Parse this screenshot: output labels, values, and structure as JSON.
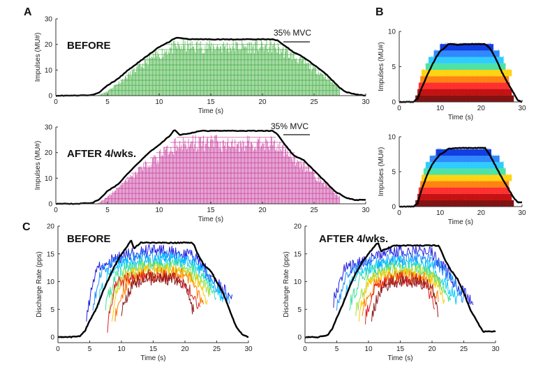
{
  "panel_labels": {
    "a": "A",
    "b": "B",
    "c": "C"
  },
  "chart_data": [
    {
      "id": "A-before",
      "panel": "A",
      "type": "area",
      "title": "BEFORE",
      "annotation": "35% MVC",
      "xlabel": "Time (s)",
      "ylabel": "Impulses (MU#)",
      "xlim": [
        0,
        30
      ],
      "ylim": [
        0,
        30
      ],
      "xticks": [
        0,
        5,
        10,
        15,
        20,
        25,
        30
      ],
      "yticks": [
        0,
        10,
        20,
        30
      ],
      "mu_color": "#3fae3f",
      "mu_envelope": {
        "x": [
          4,
          5,
          7,
          9,
          11,
          12,
          14,
          18,
          21,
          22,
          24,
          26,
          27.5
        ],
        "y": [
          0,
          2,
          9,
          16,
          21,
          22,
          22,
          22,
          22,
          20,
          15,
          9,
          3
        ]
      },
      "series": [
        {
          "name": "",
          "color": "#000000",
          "x": [
            0,
            2,
            3.5,
            4.3,
            5,
            6,
            7,
            8,
            9,
            10,
            11,
            11.5,
            12,
            13,
            14,
            15,
            16,
            17,
            18,
            19,
            20,
            21,
            21.5,
            22,
            23,
            24,
            25,
            26,
            27,
            27.5,
            28,
            29,
            30
          ],
          "y": [
            0,
            0,
            0.2,
            1.5,
            4,
            6.5,
            10,
            13,
            16,
            19,
            21,
            22.5,
            22.5,
            22,
            22,
            22,
            22,
            22,
            22,
            22,
            22,
            22,
            21.5,
            20,
            17,
            15,
            12,
            9,
            5,
            3,
            1.5,
            0.5,
            0
          ]
        }
      ]
    },
    {
      "id": "A-after",
      "panel": "A",
      "type": "area",
      "title": "AFTER 4/wks.",
      "annotation": "35% MVC",
      "xlabel": "Time (s)",
      "ylabel": "Impulses (MU#)",
      "xlim": [
        0,
        30
      ],
      "ylim": [
        0,
        30
      ],
      "xticks": [
        0,
        5,
        10,
        15,
        20,
        25,
        30
      ],
      "yticks": [
        0,
        10,
        20,
        30
      ],
      "mu_color": "#c83d9e",
      "mu_envelope": {
        "x": [
          4,
          5,
          7,
          9,
          11,
          12,
          14,
          19,
          21,
          22,
          24,
          26,
          27.5
        ],
        "y": [
          0,
          3,
          11,
          18,
          24,
          27,
          27,
          27,
          27,
          24,
          17,
          9,
          3
        ]
      },
      "series": [
        {
          "name": "",
          "color": "#000000",
          "x": [
            0,
            2,
            3.5,
            4.3,
            5,
            6,
            7,
            8,
            9,
            10,
            11,
            11.5,
            12,
            13,
            14,
            15,
            16,
            17,
            18,
            19,
            20,
            21,
            21.5,
            22,
            23,
            24,
            25,
            26,
            27,
            28,
            29,
            30
          ],
          "y": [
            0,
            0,
            0.3,
            2,
            5,
            7.5,
            12,
            16,
            20,
            23,
            26.5,
            29,
            27,
            27.5,
            28.5,
            28.5,
            28.5,
            28.5,
            28.5,
            28.5,
            28.5,
            28.5,
            27,
            24,
            19,
            17,
            13,
            9,
            5,
            2.5,
            1.5,
            1.5
          ]
        }
      ]
    },
    {
      "id": "B-before",
      "panel": "B",
      "type": "bar",
      "xlabel": "Time (s)",
      "ylabel": "Impulses (MU#)",
      "xlim": [
        0,
        30
      ],
      "ylim": [
        0,
        10
      ],
      "xticks": [
        0,
        10,
        20,
        30
      ],
      "yticks": [
        0,
        5,
        10
      ],
      "mu_bands": [
        {
          "color": "#7a0000",
          "start": 4.0,
          "end": 28.0
        },
        {
          "color": "#c00000",
          "start": 4.5,
          "end": 27.5
        },
        {
          "color": "#ff2020",
          "start": 4.8,
          "end": 27.0
        },
        {
          "color": "#ff7a00",
          "start": 5.2,
          "end": 26.8
        },
        {
          "color": "#ffd000",
          "start": 5.5,
          "end": 27.5
        },
        {
          "color": "#40e0a0",
          "start": 6.5,
          "end": 26.0
        },
        {
          "color": "#20c8ff",
          "start": 7.2,
          "end": 25.5
        },
        {
          "color": "#2080ff",
          "start": 8.5,
          "end": 24.5
        },
        {
          "color": "#0030e0",
          "start": 10.0,
          "end": 23.0
        }
      ],
      "series": [
        {
          "name": "",
          "color": "#000000",
          "x": [
            0,
            3.5,
            4.5,
            5.5,
            7,
            8,
            9,
            10,
            11,
            12,
            13,
            14,
            16,
            18,
            20,
            21,
            22,
            23,
            24,
            25,
            26,
            27,
            28,
            29,
            30
          ],
          "y": [
            0,
            0,
            0.5,
            2,
            4,
            5.2,
            6.3,
            7.2,
            7.6,
            8.2,
            8.2,
            8.1,
            8.2,
            8.2,
            8.2,
            8.2,
            7.7,
            6.8,
            5.6,
            4.3,
            3.2,
            2.2,
            1.2,
            0.2,
            0
          ]
        }
      ]
    },
    {
      "id": "B-after",
      "panel": "B",
      "type": "bar",
      "xlabel": "Time (s)",
      "ylabel": "Impulses (MU#)",
      "xlim": [
        0,
        30
      ],
      "ylim": [
        0,
        10
      ],
      "xticks": [
        0,
        10,
        20,
        30
      ],
      "yticks": [
        0,
        5,
        10
      ],
      "mu_bands": [
        {
          "color": "#7a0000",
          "start": 4.0,
          "end": 28.0
        },
        {
          "color": "#c00000",
          "start": 4.5,
          "end": 27.5
        },
        {
          "color": "#ff2020",
          "start": 4.8,
          "end": 27.0
        },
        {
          "color": "#ff7a00",
          "start": 5.2,
          "end": 26.8
        },
        {
          "color": "#ffd000",
          "start": 5.5,
          "end": 27.5
        },
        {
          "color": "#40e0a0",
          "start": 6.0,
          "end": 26.0
        },
        {
          "color": "#20c8ff",
          "start": 6.5,
          "end": 25.5
        },
        {
          "color": "#2080ff",
          "start": 7.5,
          "end": 24.5
        },
        {
          "color": "#0030e0",
          "start": 9.0,
          "end": 22.5
        }
      ],
      "series": [
        {
          "name": "",
          "color": "#000000",
          "x": [
            0,
            3.5,
            4.5,
            5.5,
            7,
            8,
            9,
            10,
            11,
            12,
            13,
            14,
            16,
            18,
            20,
            21,
            22,
            23,
            24,
            25,
            26,
            27,
            28,
            29,
            30
          ],
          "y": [
            0,
            0,
            0.5,
            2.5,
            4.8,
            6,
            6.8,
            7.5,
            7.8,
            8.3,
            8.3,
            8.4,
            8.4,
            8.4,
            8.4,
            8.4,
            7.5,
            6.4,
            5.3,
            4.2,
            3.2,
            2.2,
            1.2,
            0.6,
            0.6
          ]
        }
      ]
    },
    {
      "id": "C-before",
      "panel": "C",
      "type": "line",
      "title": "BEFORE",
      "xlabel": "Time (s)",
      "ylabel": "Discharge Rate (pps)",
      "xlim": [
        0,
        30
      ],
      "ylim": [
        -1,
        20
      ],
      "xticks": [
        0,
        5,
        10,
        15,
        20,
        25,
        30
      ],
      "yticks": [
        0,
        5,
        10,
        15,
        20
      ],
      "series": [
        {
          "name": "",
          "color": "#000000",
          "x": [
            0,
            2,
            3.5,
            4.3,
            5,
            6,
            7,
            8,
            9,
            10,
            11,
            11.5,
            12,
            13,
            14,
            15,
            16,
            17,
            18,
            19,
            20,
            21,
            21.5,
            22,
            23,
            24,
            25,
            26,
            27,
            27.5,
            28,
            29,
            30
          ],
          "y": [
            0,
            0,
            0.2,
            1.2,
            3,
            5,
            8,
            10.5,
            13,
            15,
            16.5,
            17.5,
            16,
            17,
            17,
            17,
            17,
            17,
            17,
            17,
            17,
            17,
            16.5,
            15,
            13,
            12,
            10,
            8,
            5,
            3.5,
            2,
            0.5,
            0
          ]
        },
        {
          "name": "",
          "color": "#2020e0",
          "x": [
            4.5,
            6,
            8,
            10,
            12,
            14,
            16,
            18,
            20,
            22,
            24,
            26,
            27.5
          ],
          "y": [
            4,
            12,
            13.5,
            14.5,
            15,
            15.5,
            15.5,
            15.5,
            15,
            14,
            11,
            8.5,
            7
          ]
        },
        {
          "name": "",
          "color": "#1e90ff",
          "x": [
            5.5,
            7,
            9,
            11,
            13,
            15,
            17,
            19,
            21,
            23,
            25,
            27
          ],
          "y": [
            6,
            12.5,
            13.5,
            14,
            14.5,
            14.5,
            14.5,
            14.5,
            14,
            12,
            9,
            6.5
          ]
        },
        {
          "name": "",
          "color": "#00c8ff",
          "x": [
            6.5,
            8,
            10,
            12,
            14,
            16,
            18,
            20,
            22,
            24,
            26
          ],
          "y": [
            7,
            12,
            13,
            13.5,
            13.5,
            14,
            14,
            13.5,
            12.5,
            10,
            7
          ]
        },
        {
          "name": "",
          "color": "#40e0a0",
          "x": [
            7.5,
            9,
            11,
            13,
            15,
            17,
            19,
            21,
            23,
            25
          ],
          "y": [
            6,
            11,
            12.5,
            13,
            13,
            13,
            13,
            12.5,
            10.5,
            7
          ]
        },
        {
          "name": "",
          "color": "#a0e040",
          "x": [
            8,
            10,
            12,
            14,
            16,
            18,
            20,
            22,
            24
          ],
          "y": [
            5,
            11,
            12,
            12.5,
            12.5,
            12.5,
            12,
            10.5,
            8
          ]
        },
        {
          "name": "",
          "color": "#ffc800",
          "x": [
            8.5,
            10,
            12,
            14,
            16,
            18,
            20,
            22,
            23.5
          ],
          "y": [
            4,
            10.5,
            11.5,
            12,
            12,
            12,
            11.5,
            10,
            6.5
          ]
        },
        {
          "name": "",
          "color": "#ff7a00",
          "x": [
            9,
            11,
            13,
            15,
            17,
            19,
            21,
            23
          ],
          "y": [
            4,
            10,
            11,
            11.5,
            11.5,
            11.5,
            10.5,
            5.5
          ]
        },
        {
          "name": "",
          "color": "#e02020",
          "x": [
            7.8,
            9,
            11,
            13,
            15,
            17,
            19,
            21,
            22.5
          ],
          "y": [
            2,
            9.5,
            10.5,
            11,
            11,
            11,
            10.5,
            8,
            5
          ]
        },
        {
          "name": "",
          "color": "#8b1a1a",
          "x": [
            10,
            12,
            14,
            16,
            18,
            20,
            21.5
          ],
          "y": [
            5,
            10,
            10.5,
            10.5,
            10.5,
            9.5,
            4
          ]
        }
      ]
    },
    {
      "id": "C-after",
      "panel": "C",
      "type": "line",
      "title": "AFTER 4/wks.",
      "xlabel": "Time (s)",
      "ylabel": "Discharge Rate (pps)",
      "xlim": [
        0,
        30
      ],
      "ylim": [
        -1,
        20
      ],
      "xticks": [
        0,
        5,
        10,
        15,
        20,
        25,
        30
      ],
      "yticks": [
        0,
        5,
        10,
        15,
        20
      ],
      "series": [
        {
          "name": "",
          "color": "#000000",
          "x": [
            0,
            2,
            3.5,
            4.3,
            5,
            6,
            7,
            8,
            9,
            10,
            11,
            11.5,
            12,
            13,
            14,
            15,
            16,
            17,
            18,
            19,
            20,
            21,
            21.5,
            22,
            23,
            24,
            25,
            26,
            27,
            28,
            29,
            30
          ],
          "y": [
            0,
            0,
            0.3,
            1.5,
            3.5,
            6,
            9,
            11.5,
            13.5,
            15,
            16.5,
            17,
            15.5,
            16,
            16.5,
            16.5,
            16.5,
            16.5,
            16.5,
            16.5,
            16.5,
            16.5,
            15.5,
            14,
            12,
            10.5,
            8,
            5,
            3,
            1,
            1,
            1
          ]
        },
        {
          "name": "",
          "color": "#2020e0",
          "x": [
            4.5,
            6,
            8,
            10,
            12,
            14,
            16,
            18,
            20,
            22,
            24,
            26.5
          ],
          "y": [
            6.5,
            12,
            13,
            14,
            15,
            15.5,
            15.5,
            15.5,
            15,
            12.5,
            9,
            6.5
          ]
        },
        {
          "name": "",
          "color": "#1e90ff",
          "x": [
            5,
            7,
            9,
            11,
            13,
            15,
            17,
            19,
            21,
            23,
            25
          ],
          "y": [
            6,
            12,
            13,
            13.5,
            14,
            14,
            14,
            14,
            13,
            10.5,
            7
          ]
        },
        {
          "name": "",
          "color": "#00c8ff",
          "x": [
            6,
            8,
            10,
            12,
            14,
            16,
            18,
            20,
            22,
            24
          ],
          "y": [
            7,
            11.5,
            12.5,
            13,
            13.5,
            13.5,
            13,
            12.5,
            10,
            6.5
          ]
        },
        {
          "name": "",
          "color": "#40e0a0",
          "x": [
            7,
            9,
            11,
            13,
            15,
            17,
            19,
            21,
            23
          ],
          "y": [
            6,
            11,
            12,
            12.5,
            12.5,
            12.5,
            12,
            10,
            7
          ]
        },
        {
          "name": "",
          "color": "#a0e040",
          "x": [
            8,
            10,
            12,
            14,
            16,
            18,
            20,
            22
          ],
          "y": [
            5,
            10.5,
            11.5,
            12,
            12,
            12,
            11,
            8.5
          ]
        },
        {
          "name": "",
          "color": "#ffc800",
          "x": [
            8.5,
            10,
            12,
            14,
            16,
            18,
            20,
            22
          ],
          "y": [
            4,
            10,
            11,
            11.5,
            11.5,
            11,
            10.5,
            6.5
          ]
        },
        {
          "name": "",
          "color": "#ff7a00",
          "x": [
            9,
            11,
            13,
            15,
            17,
            19,
            21
          ],
          "y": [
            5,
            9.5,
            10.5,
            11,
            11,
            10.5,
            7
          ]
        },
        {
          "name": "",
          "color": "#e02020",
          "x": [
            9.5,
            11,
            13,
            15,
            17,
            19,
            20.5
          ],
          "y": [
            3.5,
            9,
            10,
            10.5,
            10.5,
            10,
            5
          ]
        },
        {
          "name": "",
          "color": "#8b1a1a",
          "x": [
            10.5,
            12,
            14,
            16,
            18,
            20,
            21
          ],
          "y": [
            4,
            9,
            10,
            10,
            10,
            9,
            4.5
          ]
        }
      ]
    }
  ]
}
